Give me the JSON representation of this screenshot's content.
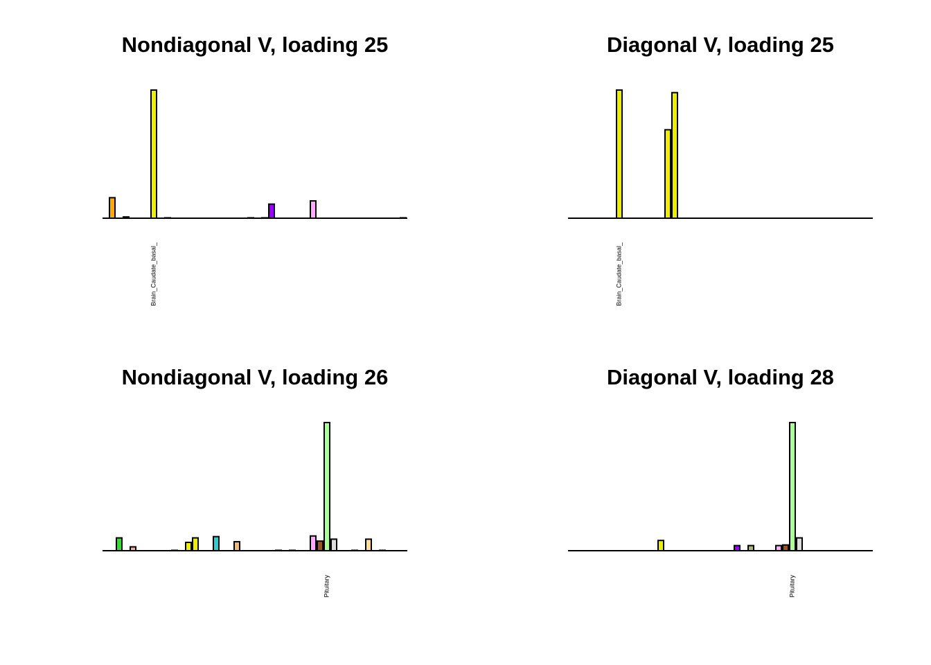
{
  "chart_data": [
    {
      "type": "bar",
      "title": "Nondiagonal V, loading 25",
      "categories": [
        null,
        null,
        null,
        null,
        null,
        null,
        null,
        "Brain_Caudate_basal_",
        null,
        null,
        null,
        null,
        null,
        null,
        null,
        null,
        null,
        null,
        null,
        null,
        null,
        null,
        null,
        null,
        null,
        null,
        null,
        null,
        null,
        null,
        null,
        null,
        null,
        null,
        null,
        null,
        null,
        null,
        null,
        null,
        null,
        null,
        null,
        null
      ],
      "values": [
        0,
        0.16,
        0,
        0.01,
        0,
        0,
        0,
        1.0,
        0,
        0.003,
        0,
        0,
        0,
        0,
        0,
        0,
        0,
        0,
        0,
        0,
        0,
        0.003,
        0,
        0.003,
        0.11,
        0,
        0,
        0,
        0,
        0,
        0.135,
        0,
        0,
        0,
        0,
        0,
        0,
        0,
        0,
        0,
        0,
        0,
        0,
        0.003
      ],
      "colors": [
        "#FF6600",
        "#FFAA00",
        "#33DD33",
        "#FF5555",
        "#FFAA99",
        "#FF0000",
        "#EEEE00",
        "#EEEE00",
        "#EEEE00",
        "#EEEE00",
        "#EEEE00",
        "#EEEE00",
        "#EEEE00",
        "#EEEE00",
        "#EEEE00",
        "#EEEE00",
        "#33CCCC",
        "#CC66FF",
        "#AAEEFF",
        "#EEBB77",
        "#CC9955",
        "#8B7355",
        "#552200",
        "#BB9988",
        "#9900FF",
        "#660099",
        "#AABB66",
        "#99FF00",
        "#AAAAFF",
        "#FFD700",
        "#FFAAFF",
        "#995522",
        "#AAFF99",
        "#DDDDDD",
        "#0000FF",
        "#7777FF",
        "#555522",
        "#778855",
        "#FFDD99",
        "#AAAAAA",
        "#006600",
        "#FF66FF",
        "#FF5599",
        "#FF00BB"
      ],
      "ylim": [
        0,
        1
      ]
    },
    {
      "type": "bar",
      "title": "Diagonal V, loading 25",
      "categories": [
        null,
        null,
        null,
        null,
        null,
        null,
        null,
        "Brain_Caudate_basal_",
        null,
        null,
        null,
        null,
        null,
        null,
        null,
        null,
        null,
        null,
        null,
        null,
        null,
        null,
        null,
        null,
        null,
        null,
        null,
        null,
        null,
        null,
        null,
        null,
        null,
        null,
        null,
        null,
        null,
        null,
        null,
        null,
        null,
        null,
        null,
        null
      ],
      "values": [
        0,
        0,
        0,
        0,
        0,
        0,
        0,
        1.0,
        0,
        0,
        0,
        0,
        0,
        0,
        0.69,
        0.98,
        0,
        0,
        0,
        0,
        0,
        0,
        0,
        0,
        0,
        0,
        0,
        0,
        0,
        0,
        0,
        0,
        0,
        0,
        0,
        0,
        0,
        0,
        0,
        0,
        0,
        0,
        0,
        0
      ],
      "colors": [
        "#FF6600",
        "#FFAA00",
        "#33DD33",
        "#FF5555",
        "#FFAA99",
        "#FF0000",
        "#EEEE00",
        "#EEEE00",
        "#EEEE00",
        "#EEEE00",
        "#EEEE00",
        "#EEEE00",
        "#EEEE00",
        "#EEEE00",
        "#EEEE00",
        "#EEEE00",
        "#33CCCC",
        "#CC66FF",
        "#AAEEFF",
        "#EEBB77",
        "#CC9955",
        "#8B7355",
        "#552200",
        "#BB9988",
        "#9900FF",
        "#660099",
        "#AABB66",
        "#99FF00",
        "#AAAAFF",
        "#FFD700",
        "#FFAAFF",
        "#995522",
        "#AAFF99",
        "#DDDDDD",
        "#0000FF",
        "#7777FF",
        "#555522",
        "#778855",
        "#FFDD99",
        "#AAAAAA",
        "#006600",
        "#FF66FF",
        "#FF5599",
        "#FF00BB"
      ],
      "ylim": [
        0,
        1
      ]
    },
    {
      "type": "bar",
      "title": "Nondiagonal V, loading 26",
      "categories": [
        null,
        null,
        null,
        null,
        null,
        null,
        null,
        null,
        null,
        null,
        null,
        null,
        null,
        null,
        null,
        null,
        null,
        null,
        null,
        null,
        null,
        null,
        null,
        null,
        null,
        null,
        null,
        null,
        null,
        null,
        null,
        null,
        "Pituitary",
        null,
        null,
        null,
        null,
        null,
        null,
        null,
        null,
        null,
        null,
        null
      ],
      "values": [
        0,
        0,
        0.1,
        0,
        0.03,
        0,
        0,
        0,
        0,
        0,
        0.003,
        0,
        0.065,
        0.1,
        0,
        0,
        0.11,
        0,
        0,
        0.07,
        0,
        0,
        0,
        0,
        0,
        0.003,
        0,
        0.003,
        0,
        0,
        0.115,
        0.075,
        1.0,
        0.09,
        0,
        0,
        0.003,
        0,
        0.09,
        0,
        0.003,
        0,
        0,
        0
      ],
      "colors": [
        "#FF6600",
        "#FFAA00",
        "#33DD33",
        "#FF5555",
        "#FFAA99",
        "#FF0000",
        "#EEEE00",
        "#EEEE00",
        "#EEEE00",
        "#EEEE00",
        "#EEEE00",
        "#EEEE00",
        "#EEEE00",
        "#EEEE00",
        "#EEEE00",
        "#EEEE00",
        "#33CCCC",
        "#CC66FF",
        "#AAEEFF",
        "#EEBB77",
        "#CC9955",
        "#8B7355",
        "#552200",
        "#BB9988",
        "#9900FF",
        "#660099",
        "#AABB66",
        "#99FF00",
        "#AAAAFF",
        "#FFD700",
        "#FFAAFF",
        "#995522",
        "#AAFF99",
        "#DDDDDD",
        "#0000FF",
        "#7777FF",
        "#555522",
        "#778855",
        "#FFDD99",
        "#AAAAAA",
        "#006600",
        "#FF66FF",
        "#FF5599",
        "#FF00BB"
      ],
      "ylim": [
        0,
        1
      ]
    },
    {
      "type": "bar",
      "title": "Diagonal V, loading 28",
      "categories": [
        null,
        null,
        null,
        null,
        null,
        null,
        null,
        null,
        null,
        null,
        null,
        null,
        null,
        null,
        null,
        null,
        null,
        null,
        null,
        null,
        null,
        null,
        null,
        null,
        null,
        null,
        null,
        null,
        null,
        null,
        null,
        null,
        "Pituitary",
        null,
        null,
        null,
        null,
        null,
        null,
        null,
        null,
        null,
        null,
        null
      ],
      "values": [
        0,
        0,
        0,
        0,
        0,
        0,
        0,
        0,
        0,
        0,
        0,
        0,
        0,
        0.08,
        0,
        0,
        0,
        0,
        0,
        0,
        0,
        0,
        0,
        0,
        0.04,
        0,
        0.04,
        0,
        0,
        0,
        0.04,
        0.045,
        1.0,
        0.1,
        0,
        0,
        0,
        0,
        0,
        0,
        0,
        0,
        0,
        0
      ],
      "colors": [
        "#FF6600",
        "#FFAA00",
        "#33DD33",
        "#FF5555",
        "#FFAA99",
        "#FF0000",
        "#EEEE00",
        "#EEEE00",
        "#EEEE00",
        "#EEEE00",
        "#EEEE00",
        "#EEEE00",
        "#EEEE00",
        "#EEEE00",
        "#EEEE00",
        "#EEEE00",
        "#33CCCC",
        "#CC66FF",
        "#AAEEFF",
        "#EEBB77",
        "#CC9955",
        "#8B7355",
        "#552200",
        "#BB9988",
        "#9900FF",
        "#660099",
        "#AABB66",
        "#99FF00",
        "#AAAAFF",
        "#FFD700",
        "#FFAAFF",
        "#995522",
        "#AAFF99",
        "#DDDDDD",
        "#0000FF",
        "#7777FF",
        "#555522",
        "#778855",
        "#FFDD99",
        "#AAAAAA",
        "#006600",
        "#FF66FF",
        "#FF5599",
        "#FF00BB"
      ],
      "ylim": [
        0,
        1
      ]
    }
  ]
}
